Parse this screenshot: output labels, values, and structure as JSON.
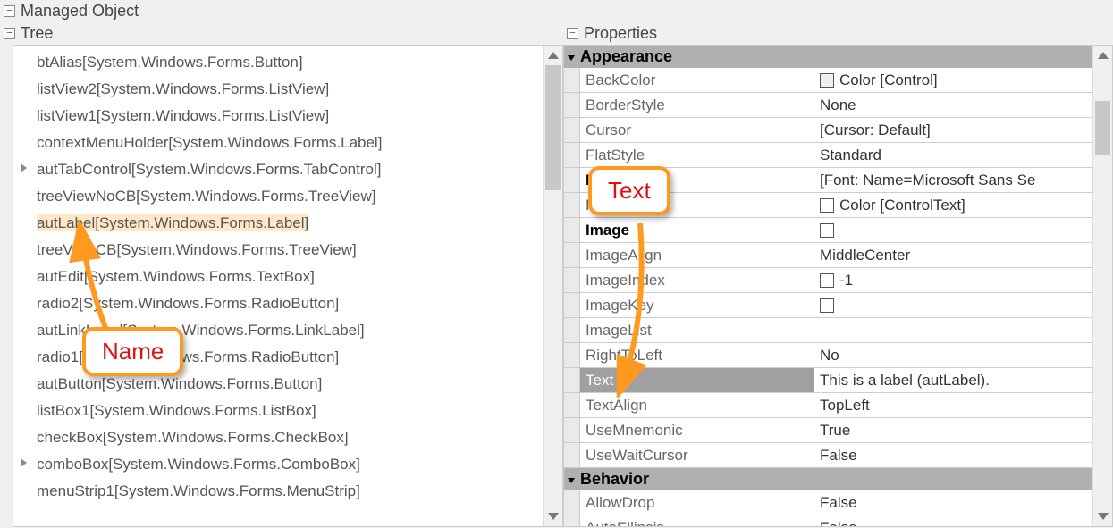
{
  "top": {
    "title": "Managed Object"
  },
  "tree": {
    "title": "Tree",
    "items": [
      {
        "label": "btAlias[System.Windows.Forms.Button]",
        "expandable": false
      },
      {
        "label": "listView2[System.Windows.Forms.ListView]",
        "expandable": false
      },
      {
        "label": "listView1[System.Windows.Forms.ListView]",
        "expandable": false
      },
      {
        "label": "contextMenuHolder[System.Windows.Forms.Label]",
        "expandable": false
      },
      {
        "label": "autTabControl[System.Windows.Forms.TabControl]",
        "expandable": true
      },
      {
        "label": "treeViewNoCB[System.Windows.Forms.TreeView]",
        "expandable": false
      },
      {
        "label": "autLabel[System.Windows.Forms.Label]",
        "expandable": false,
        "highlight": true
      },
      {
        "label": "treeViewCB[System.Windows.Forms.TreeView]",
        "expandable": false
      },
      {
        "label": "autEdit[System.Windows.Forms.TextBox]",
        "expandable": false
      },
      {
        "label": "radio2[System.Windows.Forms.RadioButton]",
        "expandable": false
      },
      {
        "label": "autLinkLabel[System.Windows.Forms.LinkLabel]",
        "expandable": false
      },
      {
        "label": "radio1[System.Windows.Forms.RadioButton]",
        "expandable": false
      },
      {
        "label": "autButton[System.Windows.Forms.Button]",
        "expandable": false
      },
      {
        "label": "listBox1[System.Windows.Forms.ListBox]",
        "expandable": false
      },
      {
        "label": "checkBox[System.Windows.Forms.CheckBox]",
        "expandable": false
      },
      {
        "label": "comboBox[System.Windows.Forms.ComboBox]",
        "expandable": true
      },
      {
        "label": "menuStrip1[System.Windows.Forms.MenuStrip]",
        "expandable": false
      }
    ]
  },
  "props": {
    "title": "Properties",
    "categories": [
      {
        "name": "Appearance",
        "rows": [
          {
            "name": "BackColor",
            "value": "Color [Control]",
            "swatch": "#f0f0f0"
          },
          {
            "name": "BorderStyle",
            "value": "None"
          },
          {
            "name": "Cursor",
            "value": "[Cursor: Default]"
          },
          {
            "name": "FlatStyle",
            "value": "Standard"
          },
          {
            "name": "Font",
            "value": "[Font: Name=Microsoft Sans Se",
            "bold": true
          },
          {
            "name": "ForeColor",
            "value": "Color [ControlText]",
            "swatch": "#ffffff"
          },
          {
            "name": "Image",
            "value": "",
            "swatch": "#ffffff",
            "bold": true
          },
          {
            "name": "ImageAlign",
            "value": "MiddleCenter"
          },
          {
            "name": "ImageIndex",
            "value": "-1",
            "swatch": "#ffffff"
          },
          {
            "name": "ImageKey",
            "value": "",
            "swatch": "#ffffff"
          },
          {
            "name": "ImageList",
            "value": ""
          },
          {
            "name": "RightToLeft",
            "value": "No"
          },
          {
            "name": "Text",
            "value": "This is a label (autLabel).",
            "selected": true
          },
          {
            "name": "TextAlign",
            "value": "TopLeft"
          },
          {
            "name": "UseMnemonic",
            "value": "True"
          },
          {
            "name": "UseWaitCursor",
            "value": "False"
          }
        ]
      },
      {
        "name": "Behavior",
        "rows": [
          {
            "name": "AllowDrop",
            "value": "False"
          },
          {
            "name": "AutoEllipsis",
            "value": "False"
          }
        ]
      }
    ]
  },
  "callouts": {
    "name": {
      "label": "Name"
    },
    "text": {
      "label": "Text"
    }
  },
  "colors": {
    "highlight_bg": "#ffe8c8",
    "callout_border": "#ff9a1f",
    "callout_text": "#d11",
    "category_bg": "#b0b0b0",
    "selected_row_bg": "#a0a0a0"
  }
}
